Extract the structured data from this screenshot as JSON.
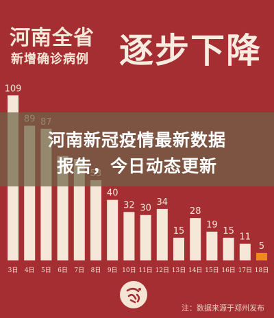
{
  "header": {
    "line1": "河南全省",
    "line2": "新增确诊病例",
    "big": "逐步下降"
  },
  "banner": {
    "line1": "河南新冠疫情最新数据",
    "line2": "报告，今日动态更新"
  },
  "footer": {
    "source": "注：数据来源于郑州发布"
  },
  "colors": {
    "background": "#a52e33",
    "bar": "#f6e8d8",
    "highlight_bar": "#f08a1f",
    "label": "#f6e8d8"
  },
  "chart_data": {
    "type": "bar",
    "categories": [
      "3日",
      "4日",
      "5日",
      "6日",
      "7日",
      "8日",
      "9日",
      "10日",
      "11日",
      "12日",
      "13日",
      "14日",
      "15日",
      "16日",
      "17日",
      "18日"
    ],
    "values": [
      109,
      89,
      87,
      69,
      67,
      53,
      40,
      32,
      30,
      34,
      15,
      28,
      19,
      15,
      11,
      5
    ],
    "data_labels": [
      "109",
      "89",
      "87",
      "",
      "",
      "53",
      "40",
      "32",
      "30",
      "34",
      "15",
      "28",
      "19",
      "15",
      "11",
      "5"
    ],
    "highlight_index": 15,
    "title": "",
    "xlabel": "",
    "ylabel": "",
    "ylim": [
      0,
      115
    ],
    "grid": false
  }
}
